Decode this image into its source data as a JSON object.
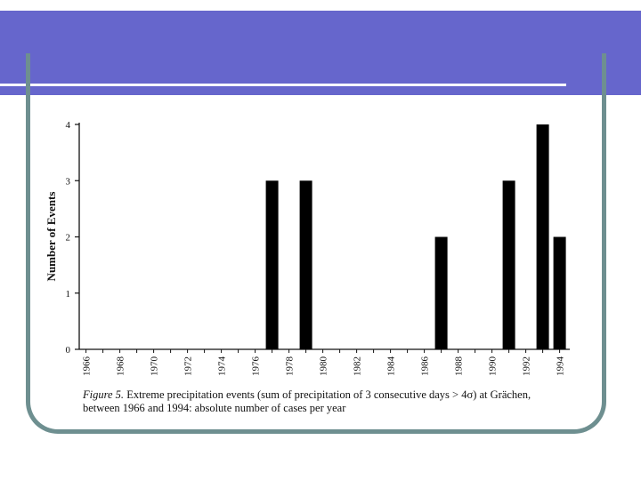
{
  "slide": {
    "banner_color": "#6666cc",
    "frame_color": "#6e8f90"
  },
  "caption": {
    "figure_label": "Figure 5.",
    "text_line1": " Extreme precipitation events (sum of precipitation of 3 consecutive days > 4σ) at Grächen,",
    "text_line2": "between 1966 and 1994: absolute number of cases per year"
  },
  "chart_data": {
    "type": "bar",
    "title": "",
    "xlabel": "",
    "ylabel": "Number of Events",
    "xlim": [
      1965.6,
      1994.6
    ],
    "ylim": [
      0,
      4
    ],
    "yticks": [
      0,
      1,
      2,
      3,
      4
    ],
    "xticks": [
      1966,
      1968,
      1970,
      1972,
      1974,
      1976,
      1978,
      1980,
      1982,
      1984,
      1986,
      1988,
      1990,
      1992,
      1994
    ],
    "grid": false,
    "bar_color": "#000000",
    "series": [
      {
        "x": [
          1966,
          1967,
          1968,
          1969,
          1970,
          1971,
          1972,
          1973,
          1974,
          1975,
          1976,
          1977,
          1978,
          1979,
          1980,
          1981,
          1982,
          1983,
          1984,
          1985,
          1986,
          1987,
          1988,
          1989,
          1990,
          1991,
          1992,
          1993,
          1994
        ],
        "values": [
          0,
          0,
          0,
          0,
          0,
          0,
          0,
          0,
          0,
          0,
          0,
          3,
          0,
          3,
          0,
          0,
          0,
          0,
          0,
          0,
          0,
          2,
          0,
          0,
          0,
          3,
          0,
          4,
          2
        ]
      }
    ]
  }
}
